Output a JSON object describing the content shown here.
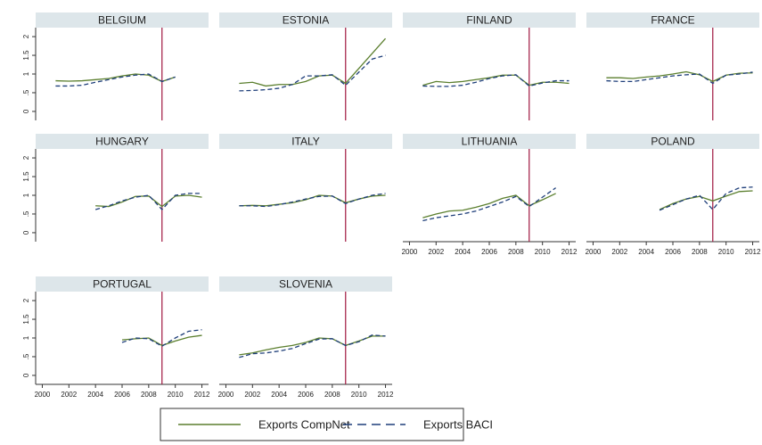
{
  "chart_data": [
    {
      "type": "line",
      "title": "BELGIUM",
      "x": [
        2001,
        2002,
        2003,
        2004,
        2005,
        2006,
        2007,
        2008,
        2009,
        2010
      ],
      "xlim": [
        1999.5,
        2012.5
      ],
      "ylim": [
        -0.24,
        2.24
      ],
      "yticks": [
        0,
        {
          "value": 0.5,
          "label": ".5"
        },
        1,
        1.5,
        2
      ],
      "vline": 2009,
      "series": [
        {
          "values": [
            0.82,
            0.81,
            0.82,
            0.85,
            0.88,
            0.95,
            1.0,
            0.97,
            0.8,
            0.92
          ]
        },
        {
          "values": [
            0.68,
            0.68,
            0.7,
            0.78,
            0.85,
            0.92,
            0.97,
            1.0,
            0.8,
            0.92
          ]
        }
      ]
    },
    {
      "type": "line",
      "title": "ESTONIA",
      "x": [
        2001,
        2002,
        2003,
        2004,
        2005,
        2006,
        2007,
        2008,
        2009,
        2010,
        2011,
        2012
      ],
      "xlim": [
        1999.5,
        2012.5
      ],
      "ylim": [
        -0.24,
        2.24
      ],
      "vline": 2009,
      "series": [
        {
          "values": [
            0.75,
            0.78,
            0.68,
            0.72,
            0.72,
            0.8,
            0.95,
            0.97,
            0.75,
            1.15,
            1.55,
            1.95
          ]
        },
        {
          "values": [
            0.55,
            0.56,
            0.58,
            0.62,
            0.72,
            0.95,
            0.95,
            0.98,
            0.7,
            1.05,
            1.4,
            1.5
          ]
        }
      ]
    },
    {
      "type": "line",
      "title": "FINLAND",
      "x": [
        2001,
        2002,
        2003,
        2004,
        2005,
        2006,
        2007,
        2008,
        2009,
        2010,
        2011,
        2012
      ],
      "xlim": [
        1999.5,
        2012.5
      ],
      "ylim": [
        -0.24,
        2.24
      ],
      "vline": 2009,
      "series": [
        {
          "values": [
            0.7,
            0.8,
            0.77,
            0.8,
            0.85,
            0.9,
            0.97,
            0.97,
            0.7,
            0.78,
            0.78,
            0.75
          ]
        },
        {
          "values": [
            0.68,
            0.67,
            0.67,
            0.7,
            0.78,
            0.88,
            0.95,
            0.98,
            0.68,
            0.76,
            0.82,
            0.82
          ]
        }
      ]
    },
    {
      "type": "line",
      "title": "FRANCE",
      "x": [
        2001,
        2002,
        2003,
        2004,
        2005,
        2006,
        2007,
        2008,
        2009,
        2010,
        2011,
        2012
      ],
      "xlim": [
        1999.5,
        2012.5
      ],
      "ylim": [
        -0.24,
        2.24
      ],
      "vline": 2009,
      "series": [
        {
          "values": [
            0.9,
            0.9,
            0.88,
            0.92,
            0.95,
            1.0,
            1.06,
            0.98,
            0.8,
            0.97,
            1.02,
            1.03
          ]
        },
        {
          "values": [
            0.82,
            0.8,
            0.8,
            0.85,
            0.9,
            0.95,
            0.98,
            1.0,
            0.75,
            0.97,
            1.0,
            1.05
          ]
        }
      ]
    },
    {
      "type": "line",
      "title": "HUNGARY",
      "x": [
        2004,
        2005,
        2006,
        2007,
        2008,
        2009,
        2010,
        2011,
        2012
      ],
      "xlim": [
        1999.5,
        2012.5
      ],
      "ylim": [
        -0.24,
        2.24
      ],
      "yticks": [
        0,
        {
          "value": 0.5,
          "label": ".5"
        },
        1,
        1.5,
        2
      ],
      "vline": 2009,
      "series": [
        {
          "values": [
            0.72,
            0.7,
            0.82,
            0.97,
            0.98,
            0.7,
            0.98,
            1.0,
            0.95
          ]
        },
        {
          "values": [
            0.62,
            0.72,
            0.85,
            0.95,
            1.0,
            0.62,
            1.0,
            1.05,
            1.05
          ]
        }
      ]
    },
    {
      "type": "line",
      "title": "ITALY",
      "x": [
        2001,
        2002,
        2003,
        2004,
        2005,
        2006,
        2007,
        2008,
        2009,
        2010,
        2011,
        2012
      ],
      "xlim": [
        1999.5,
        2012.5
      ],
      "ylim": [
        -0.24,
        2.24
      ],
      "vline": 2009,
      "series": [
        {
          "values": [
            0.72,
            0.73,
            0.72,
            0.76,
            0.8,
            0.88,
            1.0,
            0.98,
            0.8,
            0.9,
            0.98,
            1.0
          ]
        },
        {
          "values": [
            0.72,
            0.72,
            0.7,
            0.75,
            0.82,
            0.9,
            0.97,
            0.98,
            0.78,
            0.9,
            1.0,
            1.05
          ]
        }
      ]
    },
    {
      "type": "line",
      "title": "LITHUANIA",
      "x": [
        2001,
        2002,
        2003,
        2004,
        2005,
        2006,
        2007,
        2008,
        2009,
        2010,
        2011
      ],
      "xlim": [
        1999.5,
        2012.5
      ],
      "ylim": [
        -0.24,
        2.24
      ],
      "xticks": [
        2000,
        2002,
        2004,
        2006,
        2008,
        2010,
        2012
      ],
      "vline": 2009,
      "series": [
        {
          "values": [
            0.4,
            0.5,
            0.58,
            0.6,
            0.68,
            0.78,
            0.92,
            1.0,
            0.72,
            0.88,
            1.05
          ]
        },
        {
          "values": [
            0.32,
            0.4,
            0.45,
            0.5,
            0.58,
            0.7,
            0.82,
            0.97,
            0.7,
            0.95,
            1.2
          ]
        }
      ]
    },
    {
      "type": "line",
      "title": "POLAND",
      "x": [
        2005,
        2006,
        2007,
        2008,
        2009,
        2010,
        2011,
        2012
      ],
      "xlim": [
        1999.5,
        2012.5
      ],
      "ylim": [
        -0.24,
        2.24
      ],
      "xticks": [
        2000,
        2002,
        2004,
        2006,
        2008,
        2010,
        2012
      ],
      "vline": 2009,
      "series": [
        {
          "values": [
            0.62,
            0.78,
            0.9,
            0.97,
            0.85,
            0.98,
            1.1,
            1.12
          ]
        },
        {
          "values": [
            0.6,
            0.75,
            0.9,
            1.0,
            0.62,
            1.05,
            1.2,
            1.22
          ]
        }
      ]
    },
    {
      "type": "line",
      "title": "PORTUGAL",
      "x": [
        2006,
        2007,
        2008,
        2009,
        2010,
        2011,
        2012
      ],
      "xlim": [
        1999.5,
        2012.5
      ],
      "ylim": [
        -0.24,
        2.24
      ],
      "xticks": [
        2000,
        2002,
        2004,
        2006,
        2008,
        2010,
        2012
      ],
      "yticks": [
        0,
        {
          "value": 0.5,
          "label": ".5"
        },
        1,
        1.5,
        2
      ],
      "vline": 2009,
      "series": [
        {
          "values": [
            0.95,
            0.98,
            1.0,
            0.8,
            0.92,
            1.02,
            1.07
          ]
        },
        {
          "values": [
            0.88,
            1.0,
            0.98,
            0.78,
            1.0,
            1.18,
            1.22
          ]
        }
      ]
    },
    {
      "type": "line",
      "title": "SLOVENIA",
      "x": [
        2001,
        2002,
        2003,
        2004,
        2005,
        2006,
        2007,
        2008,
        2009,
        2010,
        2011,
        2012
      ],
      "xlim": [
        1999.5,
        2012.5
      ],
      "ylim": [
        -0.24,
        2.24
      ],
      "xticks": [
        2000,
        2002,
        2004,
        2006,
        2008,
        2010,
        2012
      ],
      "vline": 2009,
      "series": [
        {
          "values": [
            0.55,
            0.6,
            0.68,
            0.75,
            0.8,
            0.88,
            1.0,
            0.98,
            0.8,
            0.92,
            1.05,
            1.05
          ]
        },
        {
          "values": [
            0.48,
            0.58,
            0.6,
            0.65,
            0.72,
            0.85,
            0.97,
            0.98,
            0.8,
            0.9,
            1.08,
            1.05
          ]
        }
      ]
    }
  ],
  "legend": [
    {
      "name": "Exports CompNet",
      "color": "#5b7f2e"
    },
    {
      "name": "Exports BACI",
      "color": "#1f3f7a",
      "dash": true
    }
  ],
  "vline_color": "#a0173f"
}
